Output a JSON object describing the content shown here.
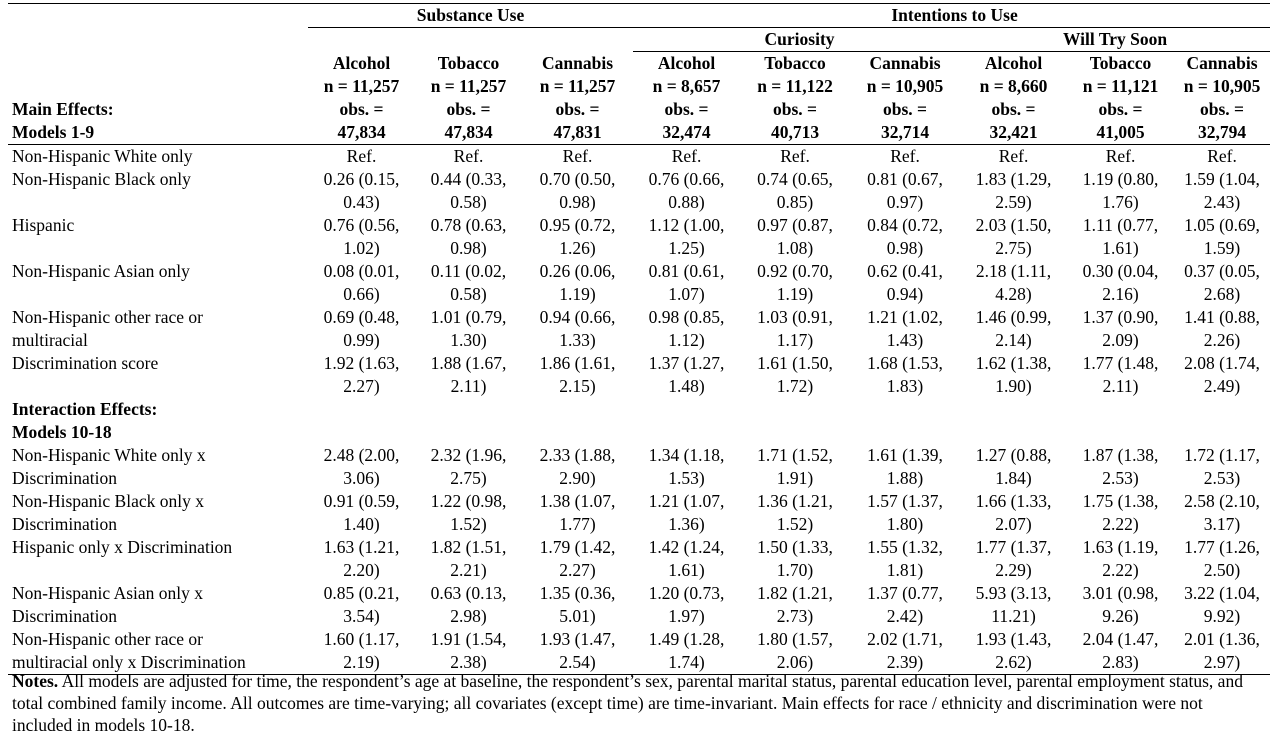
{
  "groups": {
    "substance_use": "Substance Use",
    "intentions_to_use": "Intentions to Use",
    "curiosity": "Curiosity",
    "will_try_soon": "Will Try Soon"
  },
  "main_effects_header": [
    "Main Effects:",
    "Models 1-9"
  ],
  "columns": [
    {
      "substance": "Alcohol",
      "n": "n = 11,257",
      "obs1": "obs. =",
      "obs2": "47,834"
    },
    {
      "substance": "Tobacco",
      "n": "n = 11,257",
      "obs1": "obs. =",
      "obs2": "47,834"
    },
    {
      "substance": "Cannabis",
      "n": "n = 11,257",
      "obs1": "obs. =",
      "obs2": "47,831"
    },
    {
      "substance": "Alcohol",
      "n": "n = 8,657",
      "obs1": "obs. =",
      "obs2": "32,474"
    },
    {
      "substance": "Tobacco",
      "n": "n = 11,122",
      "obs1": "obs. =",
      "obs2": "40,713"
    },
    {
      "substance": "Cannabis",
      "n": "n = 10,905",
      "obs1": "obs. =",
      "obs2": "32,714"
    },
    {
      "substance": "Alcohol",
      "n": "n = 8,660",
      "obs1": "obs. =",
      "obs2": "32,421"
    },
    {
      "substance": "Tobacco",
      "n": "n = 11,121",
      "obs1": "obs. =",
      "obs2": "41,005"
    },
    {
      "substance": "Cannabis",
      "n": "n = 10,905",
      "obs1": "obs. =",
      "obs2": "32,794"
    }
  ],
  "main_rows": [
    {
      "label": [
        "Non-Hispanic White only"
      ],
      "cells": [
        [
          "Ref."
        ],
        [
          "Ref."
        ],
        [
          "Ref."
        ],
        [
          "Ref."
        ],
        [
          "Ref."
        ],
        [
          "Ref."
        ],
        [
          "Ref."
        ],
        [
          "Ref."
        ],
        [
          "Ref."
        ]
      ]
    },
    {
      "label": [
        "Non-Hispanic Black only"
      ],
      "cells": [
        [
          "0.26 (0.15,",
          "0.43)"
        ],
        [
          "0.44 (0.33,",
          "0.58)"
        ],
        [
          "0.70 (0.50,",
          "0.98)"
        ],
        [
          "0.76 (0.66,",
          "0.88)"
        ],
        [
          "0.74 (0.65,",
          "0.85)"
        ],
        [
          "0.81 (0.67,",
          "0.97)"
        ],
        [
          "1.83 (1.29,",
          "2.59)"
        ],
        [
          "1.19 (0.80,",
          "1.76)"
        ],
        [
          "1.59 (1.04,",
          "2.43)"
        ]
      ]
    },
    {
      "label": [
        "Hispanic"
      ],
      "cells": [
        [
          "0.76 (0.56,",
          "1.02)"
        ],
        [
          "0.78 (0.63,",
          "0.98)"
        ],
        [
          "0.95 (0.72,",
          "1.26)"
        ],
        [
          "1.12 (1.00,",
          "1.25)"
        ],
        [
          "0.97 (0.87,",
          "1.08)"
        ],
        [
          "0.84 (0.72,",
          "0.98)"
        ],
        [
          "2.03 (1.50,",
          "2.75)"
        ],
        [
          "1.11 (0.77,",
          "1.61)"
        ],
        [
          "1.05 (0.69,",
          "1.59)"
        ]
      ]
    },
    {
      "label": [
        "Non-Hispanic Asian only"
      ],
      "cells": [
        [
          "0.08 (0.01,",
          "0.66)"
        ],
        [
          "0.11 (0.02,",
          "0.58)"
        ],
        [
          "0.26 (0.06,",
          "1.19)"
        ],
        [
          "0.81 (0.61,",
          "1.07)"
        ],
        [
          "0.92 (0.70,",
          "1.19)"
        ],
        [
          "0.62 (0.41,",
          "0.94)"
        ],
        [
          "2.18 (1.11,",
          "4.28)"
        ],
        [
          "0.30 (0.04,",
          "2.16)"
        ],
        [
          "0.37 (0.05,",
          "2.68)"
        ]
      ]
    },
    {
      "label": [
        "Non-Hispanic other race or",
        "multiracial"
      ],
      "cells": [
        [
          "0.69 (0.48,",
          "0.99)"
        ],
        [
          "1.01 (0.79,",
          "1.30)"
        ],
        [
          "0.94 (0.66,",
          "1.33)"
        ],
        [
          "0.98 (0.85,",
          "1.12)"
        ],
        [
          "1.03 (0.91,",
          "1.17)"
        ],
        [
          "1.21 (1.02,",
          "1.43)"
        ],
        [
          "1.46 (0.99,",
          "2.14)"
        ],
        [
          "1.37 (0.90,",
          "2.09)"
        ],
        [
          "1.41 (0.88,",
          "2.26)"
        ]
      ]
    },
    {
      "label": [
        "Discrimination score"
      ],
      "cells": [
        [
          "1.92 (1.63,",
          "2.27)"
        ],
        [
          "1.88 (1.67,",
          "2.11)"
        ],
        [
          "1.86 (1.61,",
          "2.15)"
        ],
        [
          "1.37 (1.27,",
          "1.48)"
        ],
        [
          "1.61 (1.50,",
          "1.72)"
        ],
        [
          "1.68 (1.53,",
          "1.83)"
        ],
        [
          "1.62 (1.38,",
          "1.90)"
        ],
        [
          "1.77 (1.48,",
          "2.11)"
        ],
        [
          "2.08 (1.74,",
          "2.49)"
        ]
      ]
    }
  ],
  "interaction_header": [
    "Interaction Effects:",
    "Models 10-18"
  ],
  "interaction_rows": [
    {
      "label": [
        "Non-Hispanic White only x",
        "Discrimination"
      ],
      "cells": [
        [
          "2.48 (2.00,",
          "3.06)"
        ],
        [
          "2.32 (1.96,",
          "2.75)"
        ],
        [
          "2.33 (1.88,",
          "2.90)"
        ],
        [
          "1.34 (1.18,",
          "1.53)"
        ],
        [
          "1.71 (1.52,",
          "1.91)"
        ],
        [
          "1.61 (1.39,",
          "1.88)"
        ],
        [
          "1.27 (0.88,",
          "1.84)"
        ],
        [
          "1.87 (1.38,",
          "2.53)"
        ],
        [
          "1.72 (1.17,",
          "2.53)"
        ]
      ]
    },
    {
      "label": [
        "Non-Hispanic Black only x",
        "Discrimination"
      ],
      "cells": [
        [
          "0.91 (0.59,",
          "1.40)"
        ],
        [
          "1.22 (0.98,",
          "1.52)"
        ],
        [
          "1.38 (1.07,",
          "1.77)"
        ],
        [
          "1.21 (1.07,",
          "1.36)"
        ],
        [
          "1.36 (1.21,",
          "1.52)"
        ],
        [
          "1.57 (1.37,",
          "1.80)"
        ],
        [
          "1.66 (1.33,",
          "2.07)"
        ],
        [
          "1.75 (1.38,",
          "2.22)"
        ],
        [
          "2.58 (2.10,",
          "3.17)"
        ]
      ]
    },
    {
      "label": [
        "Hispanic only x Discrimination"
      ],
      "cells": [
        [
          "1.63 (1.21,",
          "2.20)"
        ],
        [
          "1.82 (1.51,",
          "2.21)"
        ],
        [
          "1.79 (1.42,",
          "2.27)"
        ],
        [
          "1.42 (1.24,",
          "1.61)"
        ],
        [
          "1.50 (1.33,",
          "1.70)"
        ],
        [
          "1.55 (1.32,",
          "1.81)"
        ],
        [
          "1.77 (1.37,",
          "2.29)"
        ],
        [
          "1.63 (1.19,",
          "2.22)"
        ],
        [
          "1.77 (1.26,",
          "2.50)"
        ]
      ]
    },
    {
      "label": [
        "Non-Hispanic Asian only x",
        "Discrimination"
      ],
      "cells": [
        [
          "0.85 (0.21,",
          "3.54)"
        ],
        [
          "0.63 (0.13,",
          "2.98)"
        ],
        [
          "1.35 (0.36,",
          "5.01)"
        ],
        [
          "1.20 (0.73,",
          "1.97)"
        ],
        [
          "1.82 (1.21,",
          "2.73)"
        ],
        [
          "1.37 (0.77,",
          "2.42)"
        ],
        [
          "5.93 (3.13,",
          "11.21)"
        ],
        [
          "3.01 (0.98,",
          "9.26)"
        ],
        [
          "3.22 (1.04,",
          "9.92)"
        ]
      ]
    },
    {
      "label": [
        "Non-Hispanic other race or",
        "multiracial only x Discrimination"
      ],
      "cells": [
        [
          "1.60 (1.17,",
          "2.19)"
        ],
        [
          "1.91 (1.54,",
          "2.38)"
        ],
        [
          "1.93 (1.47,",
          "2.54)"
        ],
        [
          "1.49 (1.28,",
          "1.74)"
        ],
        [
          "1.80 (1.57,",
          "2.06)"
        ],
        [
          "2.02 (1.71,",
          "2.39)"
        ],
        [
          "1.93 (1.43,",
          "2.62)"
        ],
        [
          "2.04 (1.47,",
          "2.83)"
        ],
        [
          "2.01 (1.36,",
          "2.97)"
        ]
      ]
    }
  ],
  "notes": {
    "label": "Notes.",
    "text": " All models are adjusted for time, the respondent’s age at baseline, the respondent’s sex, parental marital status, parental education level, parental employment status, and total combined family income. All outcomes are time-varying; all covariates (except time) are time-invariant. Main effects for race / ethnicity and discrimination were not included in models 10-18."
  }
}
